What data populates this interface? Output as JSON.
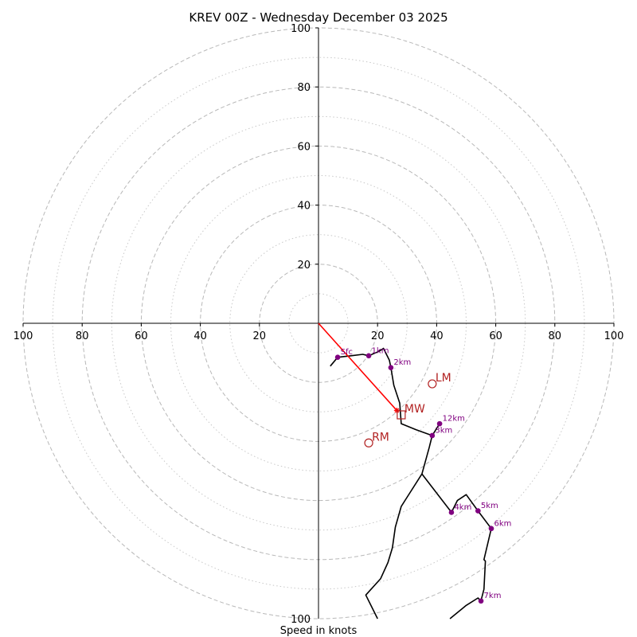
{
  "chart_data": {
    "type": "hodograph",
    "title": "KREV 00Z - Wednesday December 03 2025",
    "xlabel": "Speed in knots",
    "xlim": [
      -100,
      100
    ],
    "ylim": [
      -100,
      100
    ],
    "ring_major": [
      20,
      40,
      60,
      80,
      100
    ],
    "ring_minor": [
      10,
      30,
      50,
      70,
      90
    ],
    "x_tick_labels": [
      "100",
      "80",
      "60",
      "40",
      "20",
      "20",
      "40",
      "60",
      "80",
      "100"
    ],
    "x_tick_values": [
      -100,
      -80,
      -60,
      -40,
      -20,
      20,
      40,
      60,
      80,
      100
    ],
    "y_tick_labels": [
      "20",
      "40",
      "60",
      "80",
      "100"
    ],
    "y_tick_values": [
      20,
      40,
      60,
      80,
      100
    ],
    "y_bottom_label": "100",
    "trace_color": "#000000",
    "height_color": "#800080",
    "motion_color": "#b22222",
    "shear_color": "#ff0000",
    "trace": [
      [
        4,
        -14.5
      ],
      [
        6.5,
        -11.5
      ],
      [
        11,
        -11
      ],
      [
        15,
        -10.5
      ],
      [
        17,
        -11
      ],
      [
        20.5,
        -9.5
      ],
      [
        22,
        -8.5
      ],
      [
        24,
        -12.5
      ],
      [
        24.5,
        -15
      ],
      [
        25.5,
        -21
      ],
      [
        27.5,
        -27
      ],
      [
        28,
        -34
      ],
      [
        33,
        -36
      ],
      [
        38.5,
        -38
      ],
      [
        37.5,
        -42
      ],
      [
        35,
        -51
      ],
      [
        28,
        -62
      ],
      [
        26,
        -69
      ],
      [
        25,
        -76
      ],
      [
        23.5,
        -81
      ],
      [
        21,
        -86.5
      ],
      [
        16,
        -92
      ],
      [
        20,
        -100
      ]
    ],
    "trace_upper": [
      [
        45,
        -64
      ],
      [
        47,
        -60
      ],
      [
        50,
        -58
      ],
      [
        54,
        -63.5
      ],
      [
        58.5,
        -69.5
      ],
      [
        56,
        -80
      ],
      [
        56.5,
        -80.5
      ],
      [
        56,
        -90
      ],
      [
        55,
        -94
      ],
      [
        54,
        -93
      ],
      [
        50,
        -95.5
      ],
      [
        44.5,
        -100
      ]
    ],
    "trace_upper_link": [
      [
        35,
        -51
      ],
      [
        45,
        -64
      ]
    ],
    "trace_jet": [
      [
        38.5,
        -38
      ],
      [
        41,
        -34
      ]
    ],
    "heights": [
      {
        "label": "Sfc",
        "u": 6.5,
        "v": -11.5
      },
      {
        "label": "1km",
        "u": 17,
        "v": -11
      },
      {
        "label": "2km",
        "u": 24.5,
        "v": -15
      },
      {
        "label": "3km",
        "u": 38.5,
        "v": -38
      },
      {
        "label": "4km",
        "u": 45,
        "v": -64
      },
      {
        "label": "5km",
        "u": 54,
        "v": -63.5
      },
      {
        "label": "6km",
        "u": 58.5,
        "v": -69.5
      },
      {
        "label": "7km",
        "u": 55,
        "v": -94
      },
      {
        "label": "12km",
        "u": 41,
        "v": -34
      }
    ],
    "storm_motions": [
      {
        "label": "LM",
        "u": 38.5,
        "v": -20.5,
        "marker": "circle"
      },
      {
        "label": "RM",
        "u": 17,
        "v": -40.5,
        "marker": "circle"
      },
      {
        "label": "MW",
        "u": 28,
        "v": -31,
        "marker": "square"
      }
    ],
    "shear_vector": {
      "from": [
        0,
        0
      ],
      "to": [
        26.5,
        -29.5
      ]
    }
  }
}
